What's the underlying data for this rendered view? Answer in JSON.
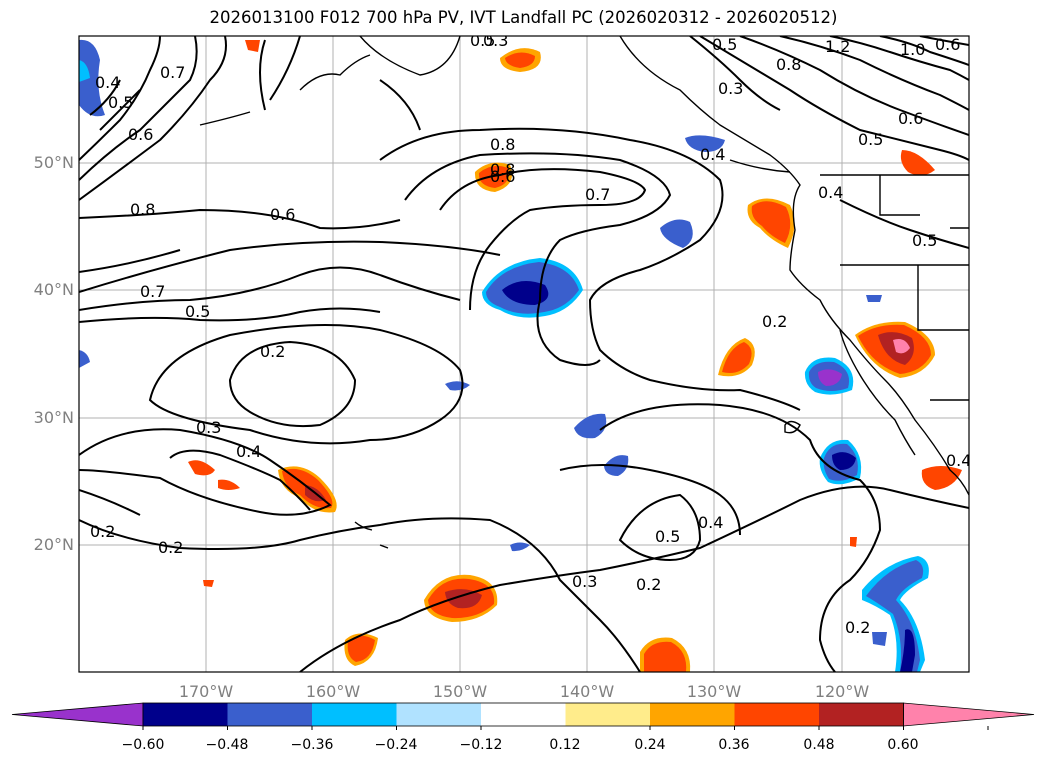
{
  "title": "2026013100 F012 700 hPa PV, IVT Landfall PC (2026020312 - 2026020512)",
  "latitude_labels": [
    "50°N",
    "40°N",
    "30°N",
    "20°N"
  ],
  "longitude_labels": [
    "170°W",
    "160°W",
    "150°W",
    "140°W",
    "130°W",
    "120°W"
  ],
  "colorbar": {
    "ticks": [
      "−0.60",
      "−0.48",
      "−0.36",
      "−0.24",
      "−0.12",
      "0.12",
      "0.24",
      "0.36",
      "0.48",
      "0.60"
    ],
    "colors": [
      "#9932cc",
      "#00008b",
      "#3a5fcd",
      "#00bfff",
      "#b0e2ff",
      "#ffffff",
      "#ffec8b",
      "#ffa500",
      "#ff4500",
      "#b22222",
      "#ff82ab"
    ]
  },
  "contour_labels": [
    "0.5",
    "0.4",
    "0.5",
    "0.7",
    "0.6",
    "0.8",
    "0.7",
    "0.5",
    "0.2",
    "0.3",
    "0.4",
    "0.2",
    "0.2",
    "0.6",
    "0.8",
    "0.7",
    "0.6",
    "0.5",
    "0.4",
    "0.3",
    "0.2",
    "0.4",
    "0.5",
    "0.3",
    "0.2",
    "1.2",
    "0.8",
    "0.6",
    "0.5",
    "0.4",
    "0.5",
    "1.0",
    "0.6",
    "0.8",
    "0.4",
    "0.3",
    "0.2"
  ]
}
